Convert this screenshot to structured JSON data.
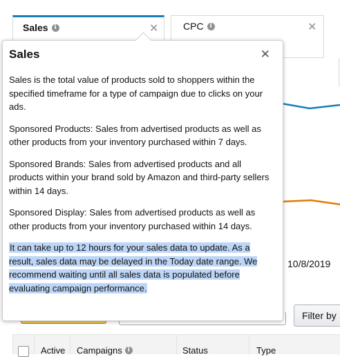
{
  "metric_cards": [
    {
      "label": "Sales",
      "active": true
    },
    {
      "label": "CPC",
      "active": false
    }
  ],
  "icons": {
    "info": "info-circle-icon",
    "close": "close-icon"
  },
  "colors": {
    "active_tab_border": "#147dba",
    "sales_line": "#147dba",
    "spend_line": "#e07b00",
    "highlight": "#bdd6f7",
    "primary_button": "#f0c14b"
  },
  "date_range_end": "10/8/2019",
  "filter_button_label": "Filter by",
  "table_headers": [
    "Active",
    "Campaigns",
    "Status",
    "Type"
  ],
  "popover": {
    "title": "Sales",
    "paragraphs": [
      "Sales is the total value of products sold to shoppers within the specified timeframe for a type of campaign due to clicks on your ads.",
      "Sponsored Products: Sales from advertised products as well as other products from your inventory purchased within 7 days.",
      "Sponsored Brands: Sales from advertised products and all products within your brand sold by Amazon and third-party sellers within 14 days.",
      "Sponsored Display: Sales from advertised products as well as other products from your inventory purchased within 14 days."
    ],
    "highlighted_text": "It can take up to 12 hours for your sales data to update. As a result, sales data may be delayed in the Today date range. We recommend waiting until all sales data is populated before evaluating campaign performance."
  }
}
